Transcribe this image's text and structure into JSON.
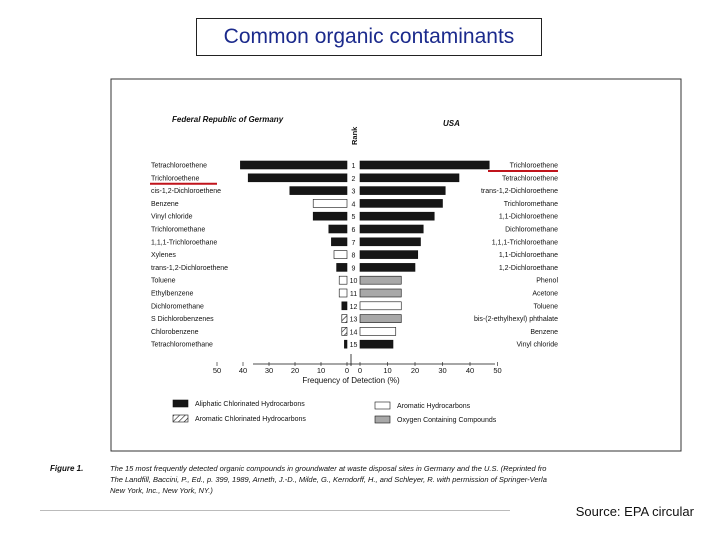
{
  "slide_title": "Common organic contaminants",
  "source": "Source:  EPA circular",
  "figure": {
    "left_heading": "Federal Republic of Germany",
    "right_heading": "USA",
    "rank_label": "Rank",
    "xlabel": "Frequency of Detection (%)",
    "caption_label": "Figure 1.",
    "caption_lines": [
      "The 15 most frequently detected organic compounds in groundwater at waste disposal sites in Germany and the U.S. (Reprinted fro",
      "The Landfill, Baccini, P., Ed., p. 399, 1989, Arneth, J.-D., Milde, G., Kerndorff, H., and Schleyer, R. with permission of Springer-Verla",
      "New York, Inc., New York, NY.)"
    ],
    "legend": [
      {
        "label": "Aliphatic Chlorinated Hydrocarbons",
        "key": "aliphatic"
      },
      {
        "label": "Aromatic Chlorinated Hydrocarbons",
        "key": "aromatic_chlorinated"
      },
      {
        "label": "Aromatic Hydrocarbons",
        "key": "aromatic"
      },
      {
        "label": "Oxygen Containing Compounds",
        "key": "oxygen"
      }
    ],
    "colors": {
      "aliphatic": "#161616",
      "aromatic": "#ffffff",
      "aromatic_chlorinated": "#ffffff",
      "oxygen": "#a8a8a8",
      "underline": "#c0141c",
      "title": "#1b2a8c"
    }
  },
  "chart_data": {
    "type": "bar",
    "orientation": "horizontal-butterfly",
    "ranks": [
      1,
      2,
      3,
      4,
      5,
      6,
      7,
      8,
      9,
      10,
      11,
      12,
      13,
      14,
      15
    ],
    "left_ticks": [
      "50",
      "40",
      "30",
      "20",
      "10",
      "0"
    ],
    "right_ticks": [
      "0",
      "10",
      "20",
      "30",
      "40",
      "50"
    ],
    "xlim": [
      0,
      50
    ],
    "germany": {
      "name": "Federal Republic of Germany",
      "labels": [
        "Tetrachloroethene",
        "Trichloroethene",
        "cis-1,2-Dichloroethene",
        "Benzene",
        "Vinyl chloride",
        "Trichloromethane",
        "1,1,1-Trichloroethane",
        "Xylenes",
        "trans-1,2-Dichloroethene",
        "Toluene",
        "Ethylbenzene",
        "Dichloromethane",
        "S Dichlorobenzenes",
        "Chlorobenzene",
        "Tetrachloromethane"
      ],
      "values": [
        41,
        38,
        22,
        13,
        13,
        7,
        6,
        5,
        4,
        3,
        3,
        2,
        2,
        2,
        1
      ],
      "categories": [
        "aliphatic",
        "aliphatic",
        "aliphatic",
        "aromatic",
        "aliphatic",
        "aliphatic",
        "aliphatic",
        "aromatic",
        "aliphatic",
        "aromatic",
        "aromatic",
        "aliphatic",
        "aromatic_chlorinated",
        "aromatic_chlorinated",
        "aliphatic"
      ]
    },
    "usa": {
      "name": "USA",
      "labels": [
        "Trichloroethene",
        "Tetrachloroethene",
        "trans-1,2-Dichloroethene",
        "Trichloromethane",
        "1,1-Dichloroethene",
        "Dichloromethane",
        "1,1,1-Trichloroethane",
        "1,1-Dichloroethane",
        "1,2-Dichloroethane",
        "Phenol",
        "Acetone",
        "Toluene",
        "bis-(2-ethylhexyl) phthalate",
        "Benzene",
        "Vinyl chloride"
      ],
      "values": [
        47,
        36,
        31,
        30,
        27,
        23,
        22,
        21,
        20,
        15,
        15,
        15,
        15,
        13,
        12
      ],
      "categories": [
        "aliphatic",
        "aliphatic",
        "aliphatic",
        "aliphatic",
        "aliphatic",
        "aliphatic",
        "aliphatic",
        "aliphatic",
        "aliphatic",
        "oxygen",
        "oxygen",
        "aromatic",
        "oxygen",
        "aromatic",
        "aliphatic"
      ]
    },
    "highlighted": {
      "germany_rank": 2,
      "usa_rank": 1
    }
  }
}
